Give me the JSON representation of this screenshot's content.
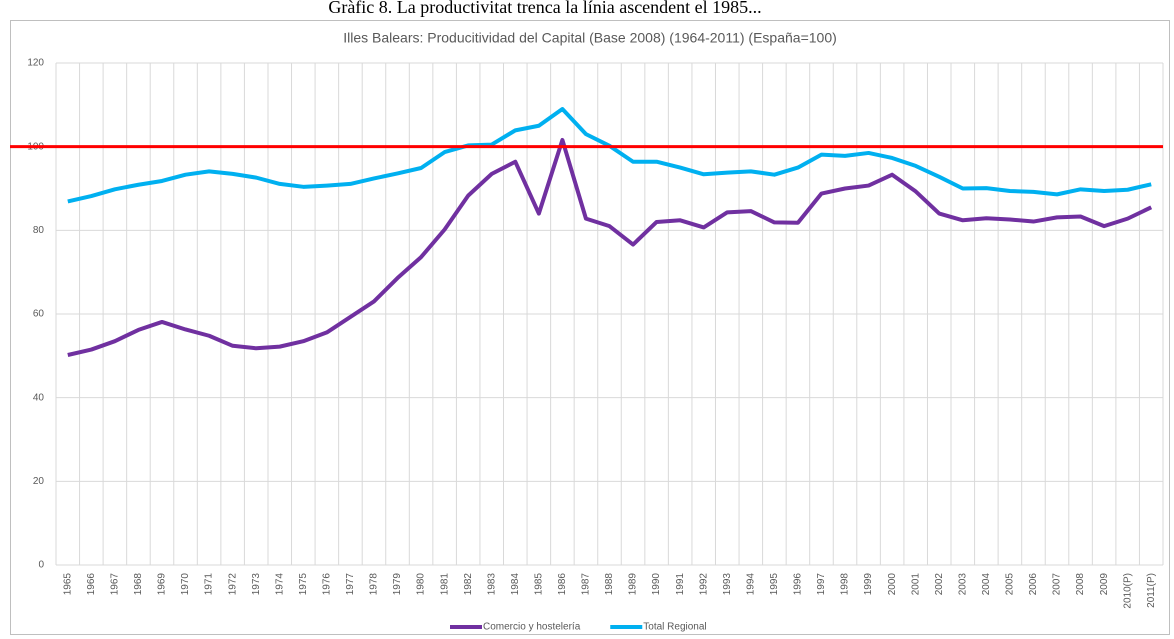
{
  "heading": "Gràfic 8. La productivitat trenca la línia ascendent el 1985...",
  "chart_data": {
    "type": "line",
    "title": "Illes Balears: Producitividad del Capital (Base 2008) (1964-2011) (España=100)",
    "categories": [
      "1965",
      "1966",
      "1967",
      "1968",
      "1969",
      "1970",
      "1971",
      "1972",
      "1973",
      "1974",
      "1975",
      "1976",
      "1977",
      "1978",
      "1979",
      "1980",
      "1981",
      "1982",
      "1983",
      "1984",
      "1985",
      "1986",
      "1987",
      "1988",
      "1989",
      "1990",
      "1991",
      "1992",
      "1993",
      "1994",
      "1995",
      "1996",
      "1997",
      "1998",
      "1999",
      "2000",
      "2001",
      "2002",
      "2003",
      "2004",
      "2005",
      "2006",
      "2007",
      "2008",
      "2009",
      "2010(P)",
      "2011(P)"
    ],
    "series": [
      {
        "name": "Comercio y hostelería",
        "color": "#7030a0",
        "values": [
          50.2,
          51.5,
          53.5,
          56.2,
          58.1,
          56.3,
          54.8,
          52.4,
          51.8,
          52.2,
          53.5,
          55.6,
          59.3,
          63,
          68.6,
          73.6,
          80.2,
          88.3,
          93.5,
          96.4,
          84,
          101.6,
          82.8,
          81,
          76.6,
          82,
          82.4,
          80.7,
          84.3,
          84.6,
          81.9,
          81.8,
          88.8,
          90,
          90.7,
          93.3,
          89.3,
          84,
          82.4,
          82.9,
          82.6,
          82.1,
          83.1,
          83.3,
          81,
          82.8,
          85.5
        ]
      },
      {
        "name": "Total Regional",
        "color": "#00b0f0",
        "values": [
          86.9,
          88.2,
          89.8,
          90.9,
          91.8,
          93.3,
          94.1,
          93.5,
          92.6,
          91.1,
          90.4,
          90.7,
          91.1,
          92.4,
          93.6,
          94.9,
          98.7,
          100.3,
          100.5,
          103.9,
          105,
          109,
          103,
          100.2,
          96.4,
          96.4,
          95,
          93.4,
          93.8,
          94.1,
          93.3,
          95,
          98.1,
          97.8,
          98.5,
          97.3,
          95.4,
          92.8,
          90,
          90.1,
          89.4,
          89.2,
          88.6,
          89.8,
          89.4,
          89.7,
          91
        ]
      }
    ],
    "reference_line": {
      "value": 100,
      "color": "#ff0000"
    },
    "ylim": [
      0,
      120
    ],
    "yticks": [
      0,
      20,
      40,
      60,
      80,
      100,
      120
    ],
    "grid": true,
    "legend": "bottom"
  }
}
